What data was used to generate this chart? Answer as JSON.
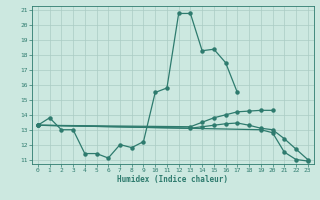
{
  "xlabel": "Humidex (Indice chaleur)",
  "background_color": "#cce8e0",
  "grid_color": "#aaccc4",
  "line_color": "#2e7b6e",
  "xlim": [
    -0.5,
    23.5
  ],
  "ylim": [
    10.7,
    21.3
  ],
  "xticks": [
    0,
    1,
    2,
    3,
    4,
    5,
    6,
    7,
    8,
    9,
    10,
    11,
    12,
    13,
    14,
    15,
    16,
    17,
    18,
    19,
    20,
    21,
    22,
    23
  ],
  "yticks": [
    11,
    12,
    13,
    14,
    15,
    16,
    17,
    18,
    19,
    20,
    21
  ],
  "line1_x": [
    0,
    1,
    2,
    3,
    4,
    5,
    6,
    7,
    8,
    9,
    10,
    11,
    12,
    13,
    14,
    15,
    16,
    17
  ],
  "line1_y": [
    13.3,
    13.8,
    13.0,
    13.0,
    11.4,
    11.4,
    11.1,
    12.0,
    11.8,
    12.2,
    15.5,
    15.8,
    20.8,
    20.8,
    18.3,
    18.4,
    17.5,
    15.5
  ],
  "line2_x": [
    0,
    19,
    20,
    21,
    22,
    23
  ],
  "line2_y": [
    13.3,
    13.0,
    12.8,
    11.5,
    11.0,
    10.9
  ],
  "line3_x": [
    0,
    13,
    14,
    15,
    16,
    17,
    18,
    19,
    20
  ],
  "line3_y": [
    13.3,
    13.2,
    13.5,
    13.8,
    14.0,
    14.2,
    14.25,
    14.3,
    14.3
  ],
  "line4_x": [
    0,
    13,
    14,
    15,
    16,
    17,
    18,
    19,
    20,
    21,
    22,
    23
  ],
  "line4_y": [
    13.3,
    13.1,
    13.2,
    13.3,
    13.4,
    13.45,
    13.3,
    13.1,
    13.0,
    12.4,
    11.7,
    11.0
  ]
}
